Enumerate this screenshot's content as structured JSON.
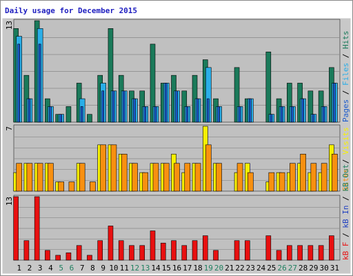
{
  "title": "Daily usage for December 2015",
  "categories": [
    "1",
    "2",
    "3",
    "4",
    "5",
    "6",
    "7",
    "8",
    "9",
    "10",
    "11",
    "12",
    "13",
    "14",
    "15",
    "16",
    "17",
    "18",
    "19",
    "20",
    "21",
    "22",
    "23",
    "24",
    "25",
    "26",
    "27",
    "28",
    "29",
    "30",
    "31"
  ],
  "category_colors": [
    "#000000",
    "#000000",
    "#000000",
    "#000000",
    "#208060",
    "#208060",
    "#000000",
    "#000000",
    "#000000",
    "#000000",
    "#000000",
    "#208060",
    "#208060",
    "#000000",
    "#000000",
    "#000000",
    "#000000",
    "#000000",
    "#208060",
    "#208060",
    "#000000",
    "#000000",
    "#000000",
    "#000000",
    "#000000",
    "#208060",
    "#208060",
    "#000000",
    "#000000",
    "#000000",
    "#000000"
  ],
  "chart_data": [
    {
      "type": "bar",
      "ylim": [
        0,
        13
      ],
      "yticks": [
        13
      ],
      "separator": " / ",
      "series": [
        {
          "name": "Hits",
          "color": "#1a7a5a",
          "values": [
            12,
            6,
            13,
            3,
            1,
            2,
            5,
            1,
            6,
            12,
            6,
            4,
            4,
            10,
            5,
            6,
            4,
            6,
            8,
            3,
            0,
            7,
            3,
            0,
            9,
            3,
            5,
            5,
            4,
            4,
            7
          ]
        },
        {
          "name": "Files",
          "color": "#2aaee8",
          "values": [
            11,
            3,
            12,
            2,
            1,
            0,
            3,
            0,
            5,
            4,
            4,
            3,
            2,
            2,
            5,
            4,
            2,
            3,
            7,
            2,
            0,
            2,
            3,
            0,
            1,
            2,
            2,
            3,
            1,
            2,
            5
          ]
        },
        {
          "name": "Pages",
          "color": "#1a5acc",
          "values": [
            10,
            3,
            10,
            2,
            1,
            0,
            2,
            0,
            4,
            4,
            4,
            3,
            2,
            2,
            5,
            4,
            2,
            3,
            3,
            2,
            0,
            2,
            3,
            0,
            1,
            2,
            2,
            3,
            1,
            2,
            5
          ]
        }
      ],
      "legend_order": [
        2,
        1,
        0
      ]
    },
    {
      "type": "bar",
      "ylim": [
        0,
        7
      ],
      "yticks": [
        7
      ],
      "separator": " / ",
      "series": [
        {
          "name": "Visits",
          "color": "#f8f000",
          "values": [
            2,
            3,
            3,
            3,
            1,
            0,
            3,
            0,
            5,
            5,
            4,
            3,
            2,
            3,
            3,
            4,
            2,
            3,
            7,
            3,
            0,
            2,
            3,
            0,
            1,
            2,
            2,
            3,
            2,
            2,
            5
          ]
        },
        {
          "name": "Sites",
          "color": "#f89010",
          "values": [
            3,
            3,
            3,
            3,
            1,
            1,
            3,
            1,
            5,
            5,
            4,
            3,
            2,
            3,
            3,
            3,
            3,
            3,
            5,
            3,
            0,
            3,
            2,
            0,
            2,
            2,
            3,
            4,
            3,
            3,
            4
          ]
        }
      ],
      "legend_order": [
        1,
        0
      ]
    },
    {
      "type": "bar",
      "ylim": [
        0,
        13
      ],
      "yticks": [
        13
      ],
      "separator": " / ",
      "series": [
        {
          "name": "kB F",
          "color": "#e81010",
          "values": [
            13,
            4,
            13,
            2,
            1,
            1.5,
            3,
            1,
            4,
            7,
            4,
            3,
            3,
            6,
            3.5,
            4,
            3,
            4,
            5,
            2,
            0,
            4,
            4,
            0,
            5,
            2,
            3,
            3,
            3,
            3,
            5
          ]
        }
      ],
      "extra_legend": [
        {
          "text": "kB In",
          "color": "#2040c0"
        },
        {
          "text": "kB Out",
          "color": "#208060"
        }
      ]
    }
  ]
}
